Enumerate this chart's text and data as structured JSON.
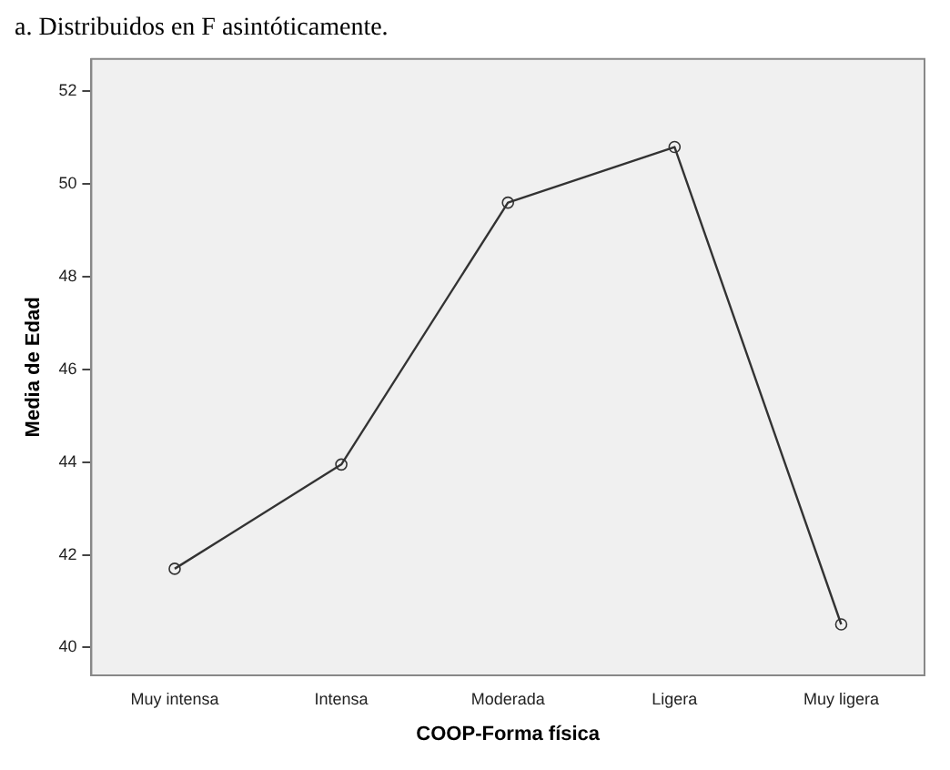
{
  "chart_data": {
    "type": "line",
    "xlabel": "COOP-Forma física",
    "ylabel": "Media de Edad",
    "annotations": [
      "a. Distribuidos en F asintóticamente."
    ],
    "categories": [
      "Muy intensa",
      "Intensa",
      "Moderada",
      "Ligera",
      "Muy ligera"
    ],
    "series": [
      {
        "color": "#333333",
        "values": [
          41.7,
          43.95,
          49.6,
          50.8,
          40.5
        ]
      }
    ],
    "ylim": [
      39.4,
      52.7
    ],
    "yticks": [
      40,
      42,
      44,
      46,
      48,
      50,
      52
    ],
    "grid": false,
    "legend": false,
    "marker": "circle",
    "line_style": "solid"
  }
}
